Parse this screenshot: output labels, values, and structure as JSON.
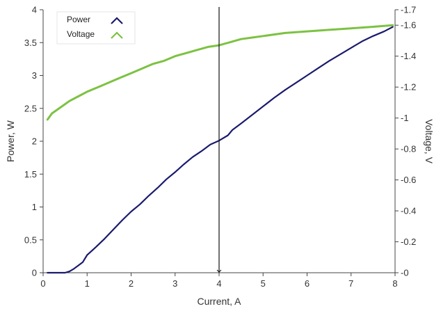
{
  "chart_data": {
    "type": "line",
    "xlabel": "Current, A",
    "ylabel_left": "Power, W",
    "ylabel_right": "Voltage, V",
    "xlim": [
      0,
      8
    ],
    "ylim_left": [
      0,
      4
    ],
    "ylim_right": [
      0,
      1.7
    ],
    "x_ticks": [
      "0",
      "1",
      "2",
      "3",
      "4",
      "5",
      "6",
      "7",
      "8"
    ],
    "y_left_ticks": [
      "0",
      "0.5",
      "1",
      "1.5",
      "2",
      "2.5",
      "3",
      "3.5",
      "4"
    ],
    "y_right_ticks": [
      "0",
      "0.2",
      "0.4",
      "0.6",
      "0.8",
      "1",
      "1.2",
      "1.4",
      "1.6",
      "1.7"
    ],
    "grid": false,
    "legend_position": "top-left",
    "cursor_x": 4.0,
    "series": [
      {
        "name": "Power",
        "axis": "left",
        "color": "#1a1a6e",
        "points": [
          [
            0.1,
            0.0
          ],
          [
            0.3,
            0.0
          ],
          [
            0.5,
            0.0
          ],
          [
            0.6,
            0.02
          ],
          [
            0.7,
            0.06
          ],
          [
            0.9,
            0.16
          ],
          [
            1.0,
            0.27
          ],
          [
            1.2,
            0.39
          ],
          [
            1.4,
            0.52
          ],
          [
            1.6,
            0.66
          ],
          [
            1.8,
            0.8
          ],
          [
            2.0,
            0.93
          ],
          [
            2.2,
            1.04
          ],
          [
            2.4,
            1.17
          ],
          [
            2.6,
            1.29
          ],
          [
            2.8,
            1.42
          ],
          [
            3.0,
            1.53
          ],
          [
            3.2,
            1.65
          ],
          [
            3.4,
            1.76
          ],
          [
            3.6,
            1.85
          ],
          [
            3.8,
            1.95
          ],
          [
            4.0,
            2.01
          ],
          [
            4.2,
            2.09
          ],
          [
            4.3,
            2.17
          ],
          [
            4.5,
            2.27
          ],
          [
            4.75,
            2.4
          ],
          [
            5.0,
            2.53
          ],
          [
            5.25,
            2.66
          ],
          [
            5.5,
            2.78
          ],
          [
            5.75,
            2.89
          ],
          [
            6.0,
            3.0
          ],
          [
            6.25,
            3.11
          ],
          [
            6.5,
            3.22
          ],
          [
            6.75,
            3.32
          ],
          [
            7.0,
            3.42
          ],
          [
            7.25,
            3.52
          ],
          [
            7.5,
            3.6
          ],
          [
            7.75,
            3.67
          ],
          [
            7.95,
            3.74
          ]
        ]
      },
      {
        "name": "Voltage",
        "axis": "right",
        "color": "#7cc242",
        "points": [
          [
            0.1,
            0.99
          ],
          [
            0.2,
            1.03
          ],
          [
            0.4,
            1.07
          ],
          [
            0.6,
            1.11
          ],
          [
            0.8,
            1.14
          ],
          [
            1.0,
            1.17
          ],
          [
            1.25,
            1.2
          ],
          [
            1.5,
            1.23
          ],
          [
            1.75,
            1.26
          ],
          [
            2.0,
            1.29
          ],
          [
            2.25,
            1.32
          ],
          [
            2.5,
            1.35
          ],
          [
            2.75,
            1.37
          ],
          [
            3.0,
            1.4
          ],
          [
            3.25,
            1.42
          ],
          [
            3.5,
            1.44
          ],
          [
            3.75,
            1.46
          ],
          [
            4.0,
            1.47
          ],
          [
            4.25,
            1.49
          ],
          [
            4.5,
            1.51
          ],
          [
            4.75,
            1.52
          ],
          [
            5.0,
            1.53
          ],
          [
            5.5,
            1.55
          ],
          [
            6.0,
            1.56
          ],
          [
            6.5,
            1.57
          ],
          [
            7.0,
            1.58
          ],
          [
            7.5,
            1.59
          ],
          [
            7.95,
            1.6
          ]
        ]
      }
    ]
  }
}
